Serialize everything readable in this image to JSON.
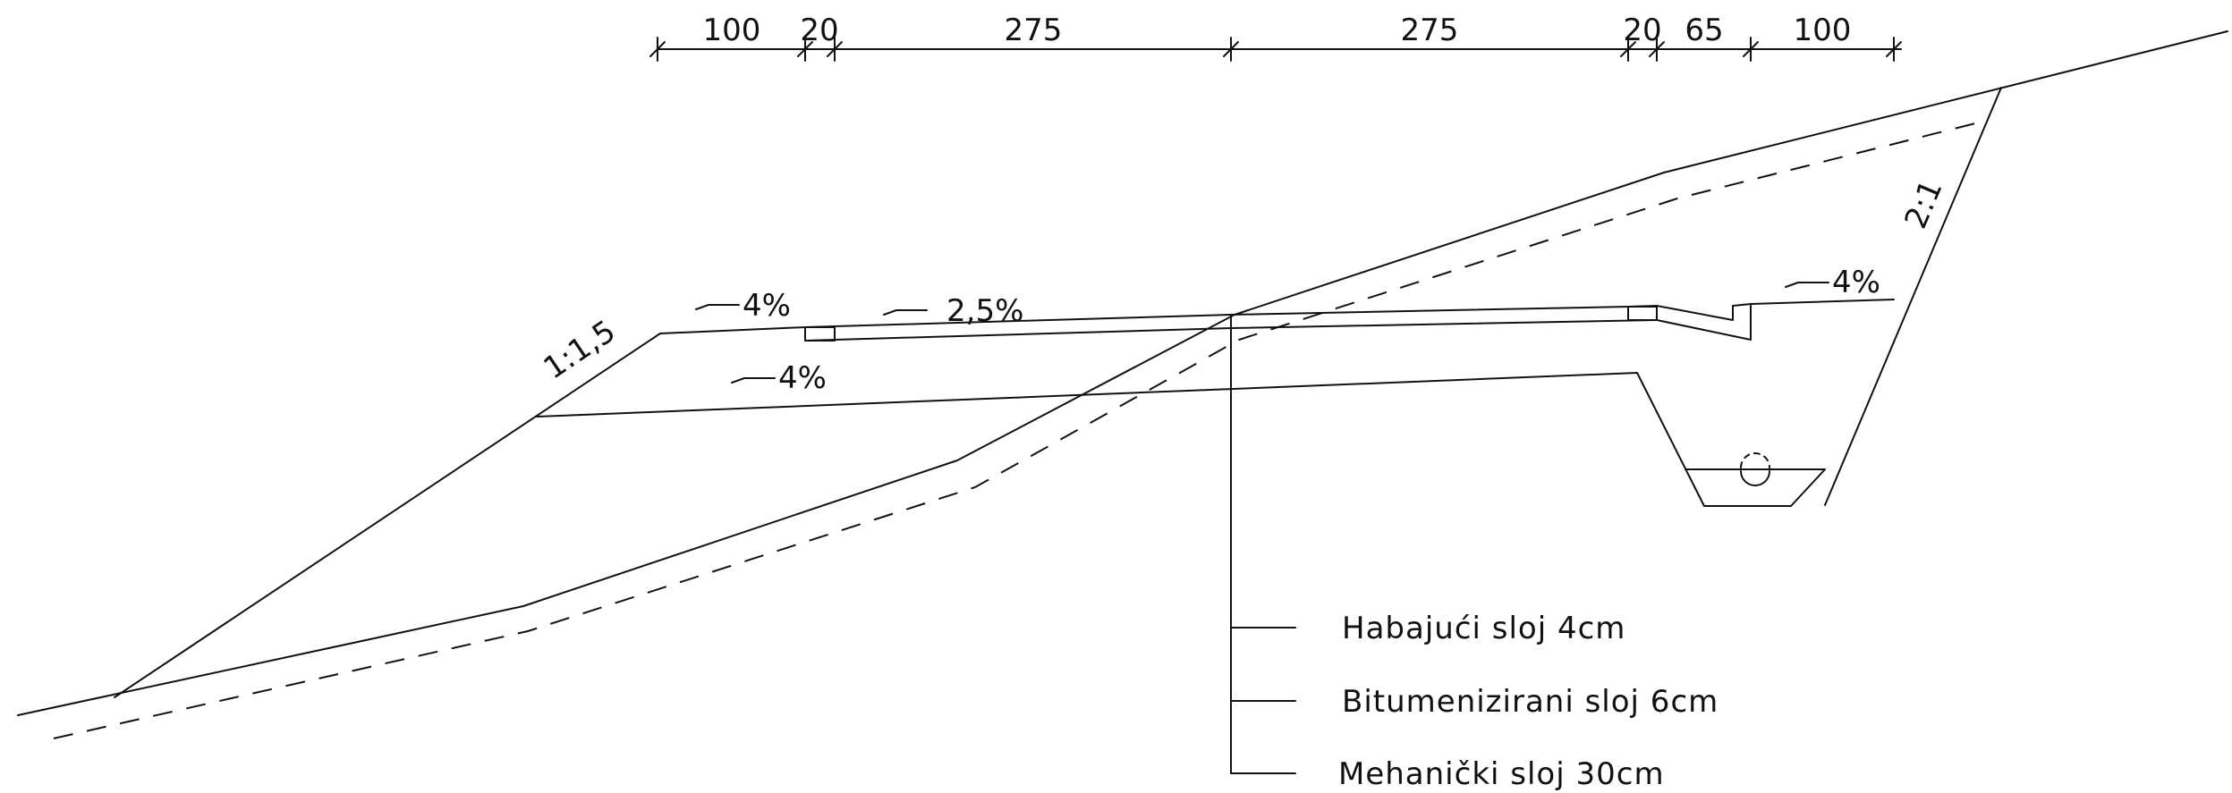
{
  "dimensions": [
    "100",
    "20",
    "275",
    "275",
    "20",
    "65",
    "100"
  ],
  "slopes": {
    "left_embankment": "1:1,5",
    "right_cut": "2:1",
    "left_shoulder": "4%",
    "carriageway": "2,5%",
    "right_shoulder": "4%",
    "subgrade": "4%"
  },
  "layers": [
    "Habajući sloj 4cm",
    "Bitumenizirani sloj 6cm",
    "Mehanički sloj 30cm"
  ]
}
